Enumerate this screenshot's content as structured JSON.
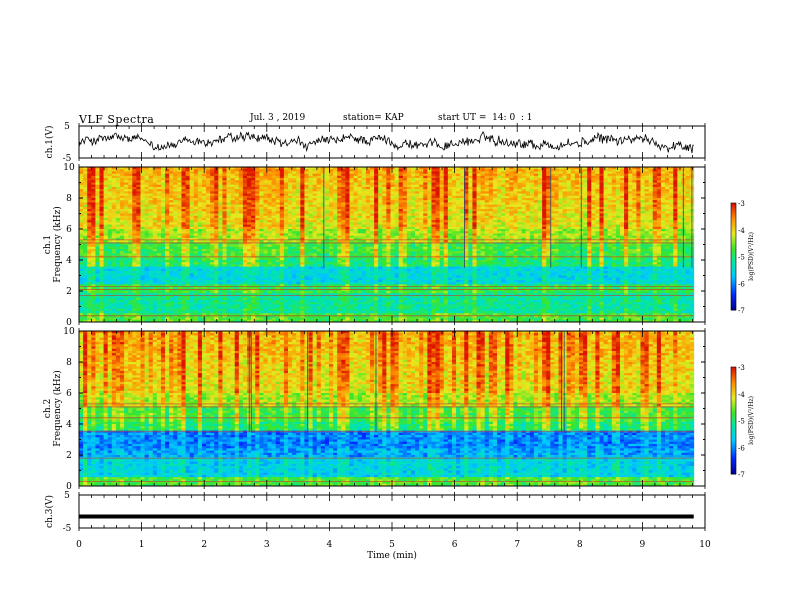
{
  "header": {
    "title": "VLF Spectra",
    "date": "Jul. 3 , 2019",
    "station": "station= KAP",
    "start": "start UT =  14: 0  : 1"
  },
  "chart_data": [
    {
      "type": "line",
      "name": "ch1-waveform",
      "ylabel": "ch.1(V)",
      "yticks": [
        "5",
        "-5"
      ],
      "ylim": [
        -5,
        5
      ],
      "xlim": [
        0,
        10
      ],
      "data_extent_min": [
        0,
        9.82
      ],
      "description_values": "noisy waveform oscillating roughly between -3 and 3 V"
    },
    {
      "type": "heatmap",
      "name": "ch1-spectrogram",
      "ylabel": "ch.1\nFrequency (kHz)",
      "ylabel_lines": [
        "ch.1",
        "Frequency (kHz)"
      ],
      "yticks": [
        "0",
        "2",
        "4",
        "6",
        "8",
        "10"
      ],
      "ylim": [
        0,
        10
      ],
      "xlim": [
        0,
        10
      ],
      "colorbar": {
        "label": "log(PSD)(V²/Hz)",
        "ticks": [
          "-3",
          "-4",
          "-5",
          "-6",
          "-7"
        ],
        "range": [
          -7,
          -3
        ]
      }
    },
    {
      "type": "heatmap",
      "name": "ch2-spectrogram",
      "ylabel_lines": [
        "ch.2",
        "Frequency (kHz)"
      ],
      "yticks": [
        "0",
        "2",
        "4",
        "6",
        "8",
        "10"
      ],
      "ylim": [
        0,
        10
      ],
      "xlim": [
        0,
        10
      ],
      "colorbar": {
        "label": "log(PSD)(V²/Hz)",
        "ticks": [
          "-3",
          "-4",
          "-5",
          "-6",
          "-7"
        ],
        "range": [
          -7,
          -3
        ]
      }
    },
    {
      "type": "line",
      "name": "ch3-waveform",
      "ylabel": "ch.3(V)",
      "yticks": [
        "5",
        "-5"
      ],
      "ylim": [
        -5,
        5
      ],
      "xlim": [
        0,
        10
      ],
      "constant_value": -1.5
    }
  ],
  "xaxis": {
    "label": "Time (min)",
    "ticks": [
      "0",
      "1",
      "2",
      "3",
      "4",
      "5",
      "6",
      "7",
      "8",
      "9",
      "10"
    ]
  }
}
